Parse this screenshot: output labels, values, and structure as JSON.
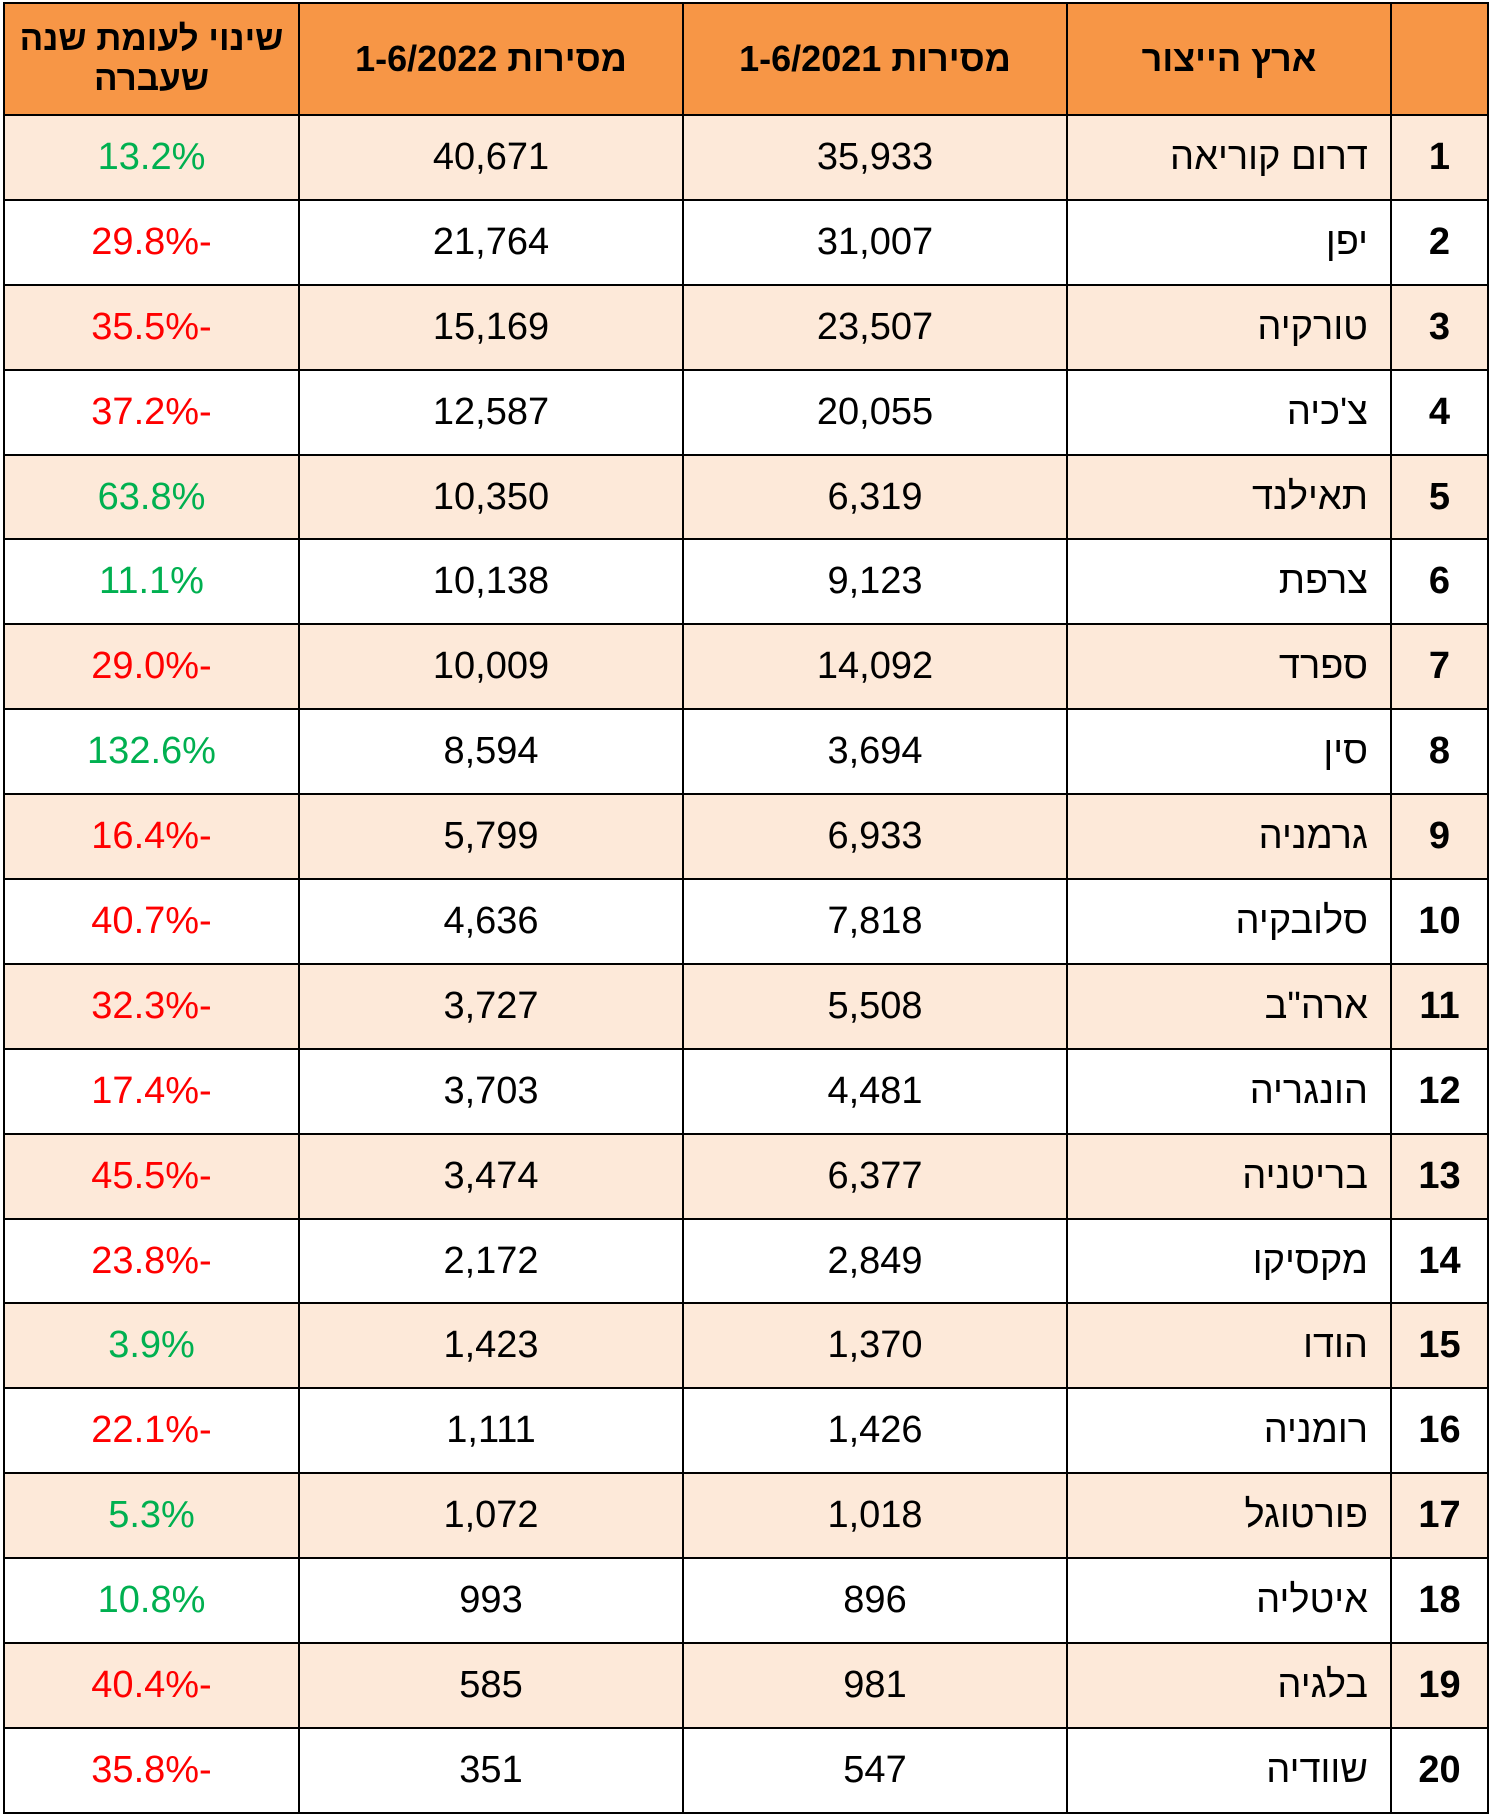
{
  "chart_data": {
    "type": "table",
    "columns": [
      {
        "key": "rank",
        "label": ""
      },
      {
        "key": "country",
        "label": "ארץ הייצור"
      },
      {
        "key": "d2021",
        "label": "מסירות 1-6/2021"
      },
      {
        "key": "d2022",
        "label": "מסירות 1-6/2022"
      },
      {
        "key": "change",
        "label": "שינוי לעומת שנה שעברה"
      }
    ],
    "rows": [
      {
        "rank": "1",
        "country": "דרום קוריאה",
        "d2021": "35,933",
        "d2022": "40,671",
        "change": "13.2%"
      },
      {
        "rank": "2",
        "country": "יפן",
        "d2021": "31,007",
        "d2022": "21,764",
        "change": "-29.8%"
      },
      {
        "rank": "3",
        "country": "טורקיה",
        "d2021": "23,507",
        "d2022": "15,169",
        "change": "-35.5%"
      },
      {
        "rank": "4",
        "country": "צ'כיה",
        "d2021": "20,055",
        "d2022": "12,587",
        "change": "-37.2%"
      },
      {
        "rank": "5",
        "country": "תאילנד",
        "d2021": "6,319",
        "d2022": "10,350",
        "change": "63.8%"
      },
      {
        "rank": "6",
        "country": "צרפת",
        "d2021": "9,123",
        "d2022": "10,138",
        "change": "11.1%"
      },
      {
        "rank": "7",
        "country": "ספרד",
        "d2021": "14,092",
        "d2022": "10,009",
        "change": "-29.0%"
      },
      {
        "rank": "8",
        "country": "סין",
        "d2021": "3,694",
        "d2022": "8,594",
        "change": "132.6%"
      },
      {
        "rank": "9",
        "country": "גרמניה",
        "d2021": "6,933",
        "d2022": "5,799",
        "change": "-16.4%"
      },
      {
        "rank": "10",
        "country": "סלובקיה",
        "d2021": "7,818",
        "d2022": "4,636",
        "change": "-40.7%"
      },
      {
        "rank": "11",
        "country": "ארה\"ב",
        "d2021": "5,508",
        "d2022": "3,727",
        "change": "-32.3%"
      },
      {
        "rank": "12",
        "country": "הונגריה",
        "d2021": "4,481",
        "d2022": "3,703",
        "change": "-17.4%"
      },
      {
        "rank": "13",
        "country": "בריטניה",
        "d2021": "6,377",
        "d2022": "3,474",
        "change": "-45.5%"
      },
      {
        "rank": "14",
        "country": "מקסיקו",
        "d2021": "2,849",
        "d2022": "2,172",
        "change": "-23.8%"
      },
      {
        "rank": "15",
        "country": "הודו",
        "d2021": "1,370",
        "d2022": "1,423",
        "change": "3.9%"
      },
      {
        "rank": "16",
        "country": "רומניה",
        "d2021": "1,426",
        "d2022": "1,111",
        "change": "-22.1%"
      },
      {
        "rank": "17",
        "country": "פורטוגל",
        "d2021": "1,018",
        "d2022": "1,072",
        "change": "5.3%"
      },
      {
        "rank": "18",
        "country": "איטליה",
        "d2021": "896",
        "d2022": "993",
        "change": "10.8%"
      },
      {
        "rank": "19",
        "country": "בלגיה",
        "d2021": "981",
        "d2022": "585",
        "change": "-40.4%"
      },
      {
        "rank": "20",
        "country": "שוודיה",
        "d2021": "547",
        "d2022": "351",
        "change": "-35.8%"
      }
    ]
  },
  "colors": {
    "header_bg": "#F79646",
    "band_bg": "#FDE9D9",
    "positive": "#00B050",
    "negative": "#FF0000"
  }
}
